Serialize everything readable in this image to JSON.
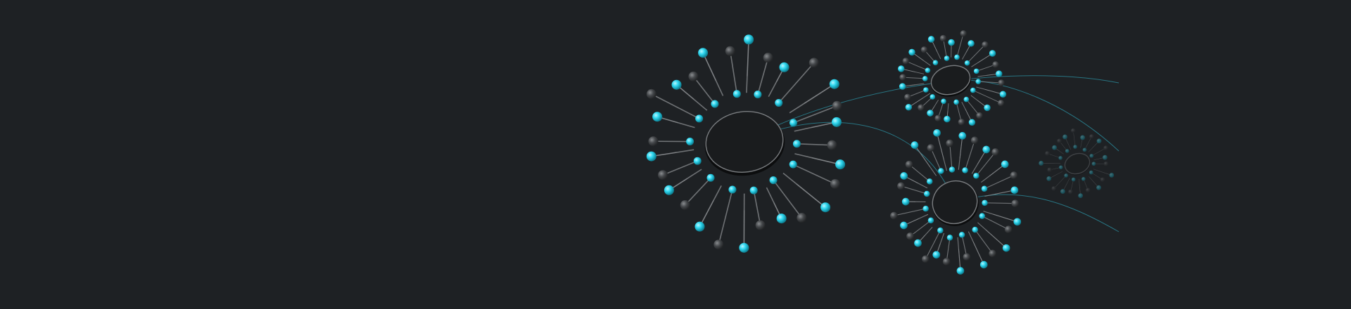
{
  "colors": {
    "background": "#1e2124",
    "accent": "#2fd8f0",
    "node_gray": "#4a4d50",
    "spoke": "#8a8d90",
    "link": "#2a8a9a"
  },
  "icons": [
    "radial-network-cluster"
  ]
}
